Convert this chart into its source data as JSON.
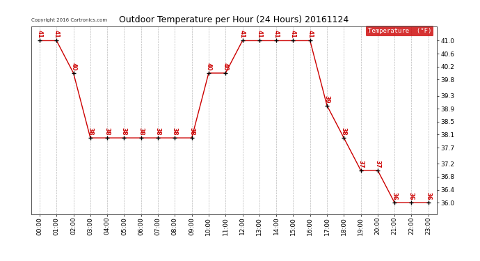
{
  "title": "Outdoor Temperature per Hour (24 Hours) 20161124",
  "hours": [
    "00:00",
    "01:00",
    "02:00",
    "03:00",
    "04:00",
    "05:00",
    "06:00",
    "07:00",
    "08:00",
    "09:00",
    "10:00",
    "11:00",
    "12:00",
    "13:00",
    "14:00",
    "15:00",
    "16:00",
    "17:00",
    "18:00",
    "19:00",
    "20:00",
    "21:00",
    "22:00",
    "23:00"
  ],
  "temps": [
    41,
    41,
    40,
    38,
    38,
    38,
    38,
    38,
    38,
    38,
    40,
    40,
    41,
    41,
    41,
    41,
    41,
    39,
    38,
    37,
    37,
    36,
    36,
    36
  ],
  "temp_labels": [
    "41",
    "41",
    "40",
    "38",
    "38",
    "38",
    "38",
    "38",
    "38",
    "38",
    "40",
    "40",
    "41",
    "41",
    "41",
    "41",
    "41",
    "39",
    "38",
    "37",
    "37",
    "36",
    "36",
    "36"
  ],
  "line_color": "#cc0000",
  "marker_color": "#000000",
  "label_color": "#cc0000",
  "legend_text": "Temperature  (°F)",
  "legend_bg": "#cc0000",
  "legend_fg": "#ffffff",
  "copyright_text": "Copyright 2016 Cartronics.com",
  "ylabel_right_values": [
    36.0,
    36.4,
    36.8,
    37.2,
    37.7,
    38.1,
    38.5,
    38.9,
    39.3,
    39.8,
    40.2,
    40.6,
    41.0
  ],
  "ylim_min": 35.65,
  "ylim_max": 41.45,
  "background_color": "#ffffff",
  "grid_color": "#bbbbbb"
}
